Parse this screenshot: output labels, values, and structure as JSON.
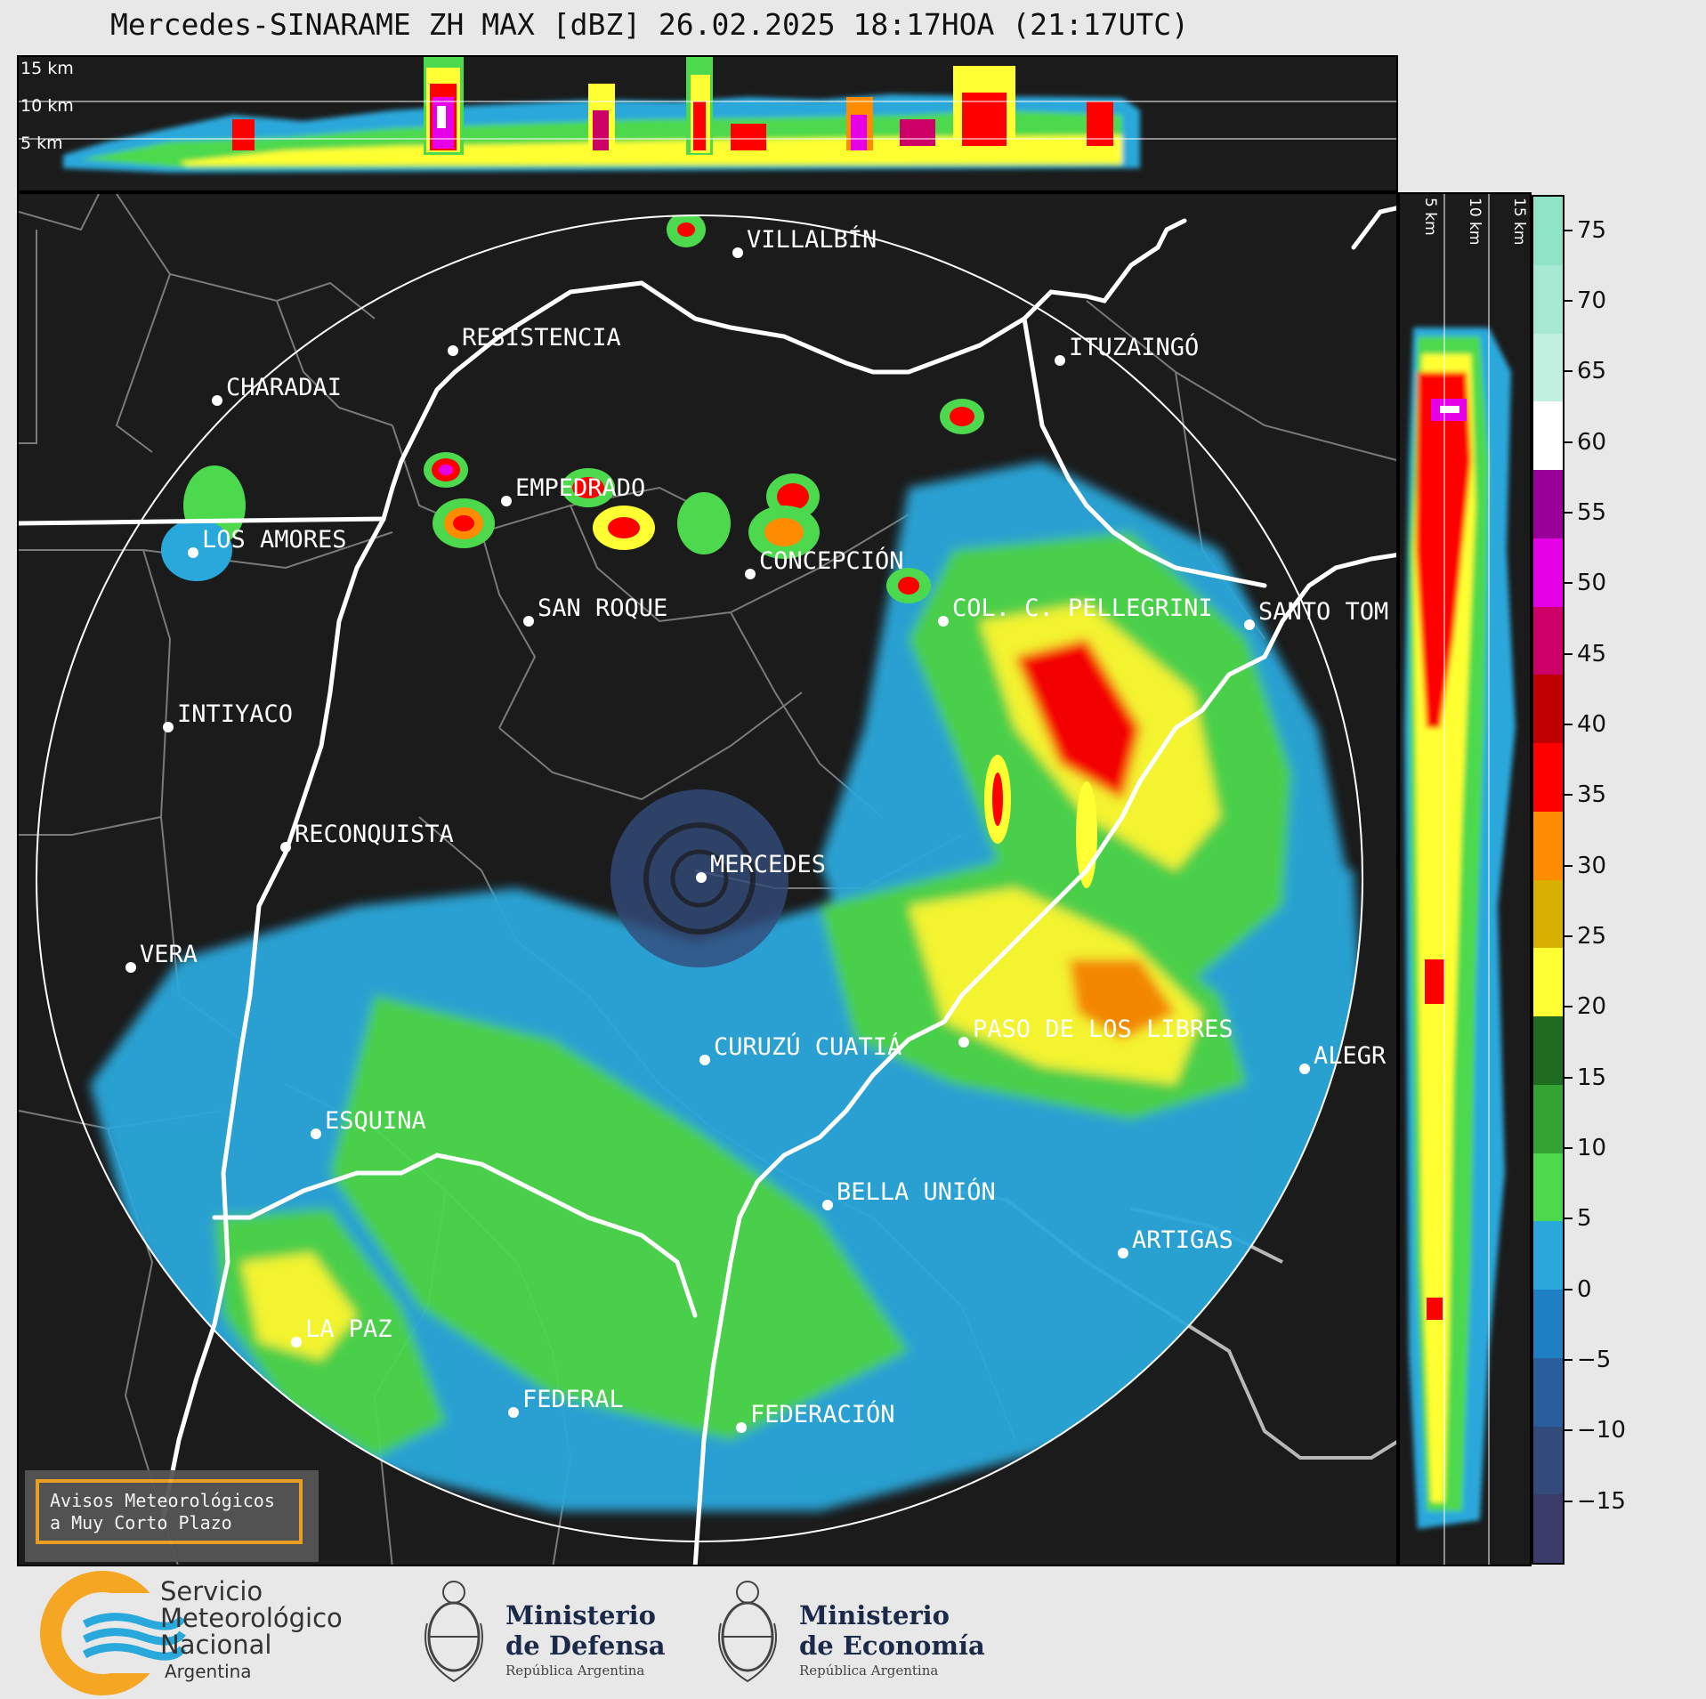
{
  "title": "Mercedes-SINARAME ZH MAX [dBZ] 26.02.2025 18:17HOA (21:17UTC)",
  "height_labels": [
    "15 km",
    "10 km",
    "5 km"
  ],
  "colorbar": {
    "ticks": [
      "75",
      "70",
      "65",
      "60",
      "55",
      "50",
      "45",
      "40",
      "35",
      "30",
      "25",
      "20",
      "15",
      "10",
      "5",
      "0",
      "−5",
      "−10",
      "−15"
    ],
    "colors": [
      "#8fe3c7",
      "#a6e9d3",
      "#c2f0e0",
      "#ffffff",
      "#990099",
      "#e600e6",
      "#cc0066",
      "#c00000",
      "#ff0000",
      "#ff8c00",
      "#d9b000",
      "#ffff33",
      "#1f6b1f",
      "#33a333",
      "#4dd94d",
      "#29a8db",
      "#1e7fc2",
      "#2a5f9e",
      "#334b7a",
      "#3b3d68"
    ]
  },
  "cities": [
    {
      "name": "VILLALBÍN"
    },
    {
      "name": "RESISTENCIA"
    },
    {
      "name": "CHARADAI"
    },
    {
      "name": "ITUZAINGÓ"
    },
    {
      "name": "EMPEDRADO"
    },
    {
      "name": "LOS AMORES"
    },
    {
      "name": "CONCEPCIÓN"
    },
    {
      "name": "SAN ROQUE"
    },
    {
      "name": "COL. C. PELLEGRINI"
    },
    {
      "name": "SANTO TOM"
    },
    {
      "name": "INTIYACO"
    },
    {
      "name": "RECONQUISTA"
    },
    {
      "name": "MERCEDES"
    },
    {
      "name": "VERA"
    },
    {
      "name": "PASO DE LOS LIBRES"
    },
    {
      "name": "CURUZÚ CUATIÁ"
    },
    {
      "name": "ALEGR"
    },
    {
      "name": "ESQUINA"
    },
    {
      "name": "BELLA UNIÓN"
    },
    {
      "name": "ARTIGAS"
    },
    {
      "name": "LA PAZ"
    },
    {
      "name": "FEDERAL"
    },
    {
      "name": "FEDERACIÓN"
    }
  ],
  "warning": {
    "line1": "Avisos Meteorológicos",
    "line2": "a Muy Corto Plazo"
  },
  "logos": {
    "smn": {
      "line1": "Servicio",
      "line2": "Meteorológico",
      "line3": "Nacional",
      "line4": "Argentina"
    },
    "defensa": {
      "line1": "Ministerio",
      "line2": "de Defensa",
      "line3": "República Argentina"
    },
    "economia": {
      "line1": "Ministerio",
      "line2": "de Economía",
      "line3": "República Argentina"
    }
  }
}
